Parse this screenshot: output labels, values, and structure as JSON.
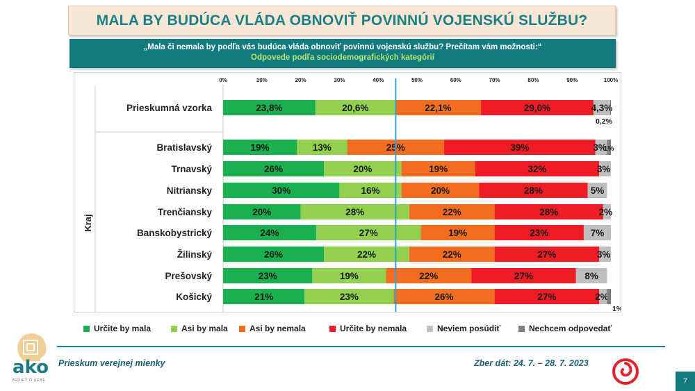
{
  "title": "MALA BY BUDÚCA VLÁDA OBNOVIŤ POVINNÚ VOJENSKÚ SLUŽBU?",
  "subtitle_question": "„Mala či nemala by podľa vás budúca vláda obnoviť povinnú vojenskú službu? Prečítam vám možnosti:“",
  "subtitle_breakdown": "Odpovede podľa sociodemografických kategórií",
  "footer": {
    "left": "Prieskum verejnej mienky",
    "right": "Zber dát: 24. 7. – 28. 7. 2023"
  },
  "logo": {
    "text": "ako",
    "tagline": "VEDIEŤ O SEBE"
  },
  "page_number": "7",
  "colors": {
    "urcite_by_mala": "#1aaf4f",
    "asi_by_mala": "#92d050",
    "asi_by_nemala": "#f36d21",
    "urcite_by_nemala": "#ee1c24",
    "neviem": "#bfbfbf",
    "nechcem": "#7f7f7f",
    "reference_line": "#2aa6d6",
    "teal": "#137a80"
  },
  "chart_data": {
    "type": "bar",
    "orientation": "horizontal",
    "stacked": true,
    "x_ticks": [
      "0%",
      "10%",
      "20%",
      "30%",
      "40%",
      "50%",
      "60%",
      "70%",
      "80%",
      "90%",
      "100%"
    ],
    "xlim": [
      0,
      100
    ],
    "reference_line_x": 44.5,
    "group_label": "Kraj",
    "legend_position": "bottom",
    "series": [
      {
        "name": "Určite by mala",
        "color": "#1aaf4f"
      },
      {
        "name": "Asi by mala",
        "color": "#92d050"
      },
      {
        "name": "Asi by nemala",
        "color": "#f36d21"
      },
      {
        "name": "Určite by nemala",
        "color": "#ee1c24"
      },
      {
        "name": "Neviem posúdiť",
        "color": "#bfbfbf"
      },
      {
        "name": "Nechcem odpovedať",
        "color": "#7f7f7f"
      }
    ],
    "rows": [
      {
        "category": "Prieskumná vzorka",
        "values": [
          23.8,
          20.6,
          22.1,
          29.0,
          4.3,
          0.2
        ],
        "labels": [
          "23,8%",
          "20,6%",
          "22,1%",
          "29,0%",
          "4,3%",
          "0,2%"
        ]
      },
      {
        "category": "Bratislavský",
        "values": [
          19,
          13,
          25,
          39,
          3,
          1
        ],
        "labels": [
          "19%",
          "13%",
          "25%",
          "39%",
          "3%",
          "1%"
        ]
      },
      {
        "category": "Trnavský",
        "values": [
          26,
          20,
          19,
          32,
          3,
          0
        ],
        "labels": [
          "26%",
          "20%",
          "19%",
          "32%",
          "3%",
          ""
        ]
      },
      {
        "category": "Nitriansky",
        "values": [
          30,
          16,
          20,
          28,
          5,
          0
        ],
        "labels": [
          "30%",
          "16%",
          "20%",
          "28%",
          "5%",
          ""
        ]
      },
      {
        "category": "Trenčiansky",
        "values": [
          20,
          28,
          22,
          28,
          2,
          0
        ],
        "labels": [
          "20%",
          "28%",
          "22%",
          "28%",
          "2%",
          ""
        ]
      },
      {
        "category": "Banskobystrický",
        "values": [
          24,
          27,
          19,
          23,
          7,
          0
        ],
        "labels": [
          "24%",
          "27%",
          "19%",
          "23%",
          "7%",
          ""
        ]
      },
      {
        "category": "Žilinský",
        "values": [
          26,
          22,
          22,
          27,
          3,
          0
        ],
        "labels": [
          "26%",
          "22%",
          "22%",
          "27%",
          "3%",
          ""
        ]
      },
      {
        "category": "Prešovský",
        "values": [
          23,
          19,
          22,
          27,
          8,
          0
        ],
        "labels": [
          "23%",
          "19%",
          "22%",
          "27%",
          "8%",
          ""
        ]
      },
      {
        "category": "Košický",
        "values": [
          21,
          23,
          26,
          27,
          2,
          1
        ],
        "labels": [
          "21%",
          "23%",
          "26%",
          "27%",
          "2%",
          "1%"
        ]
      }
    ]
  }
}
